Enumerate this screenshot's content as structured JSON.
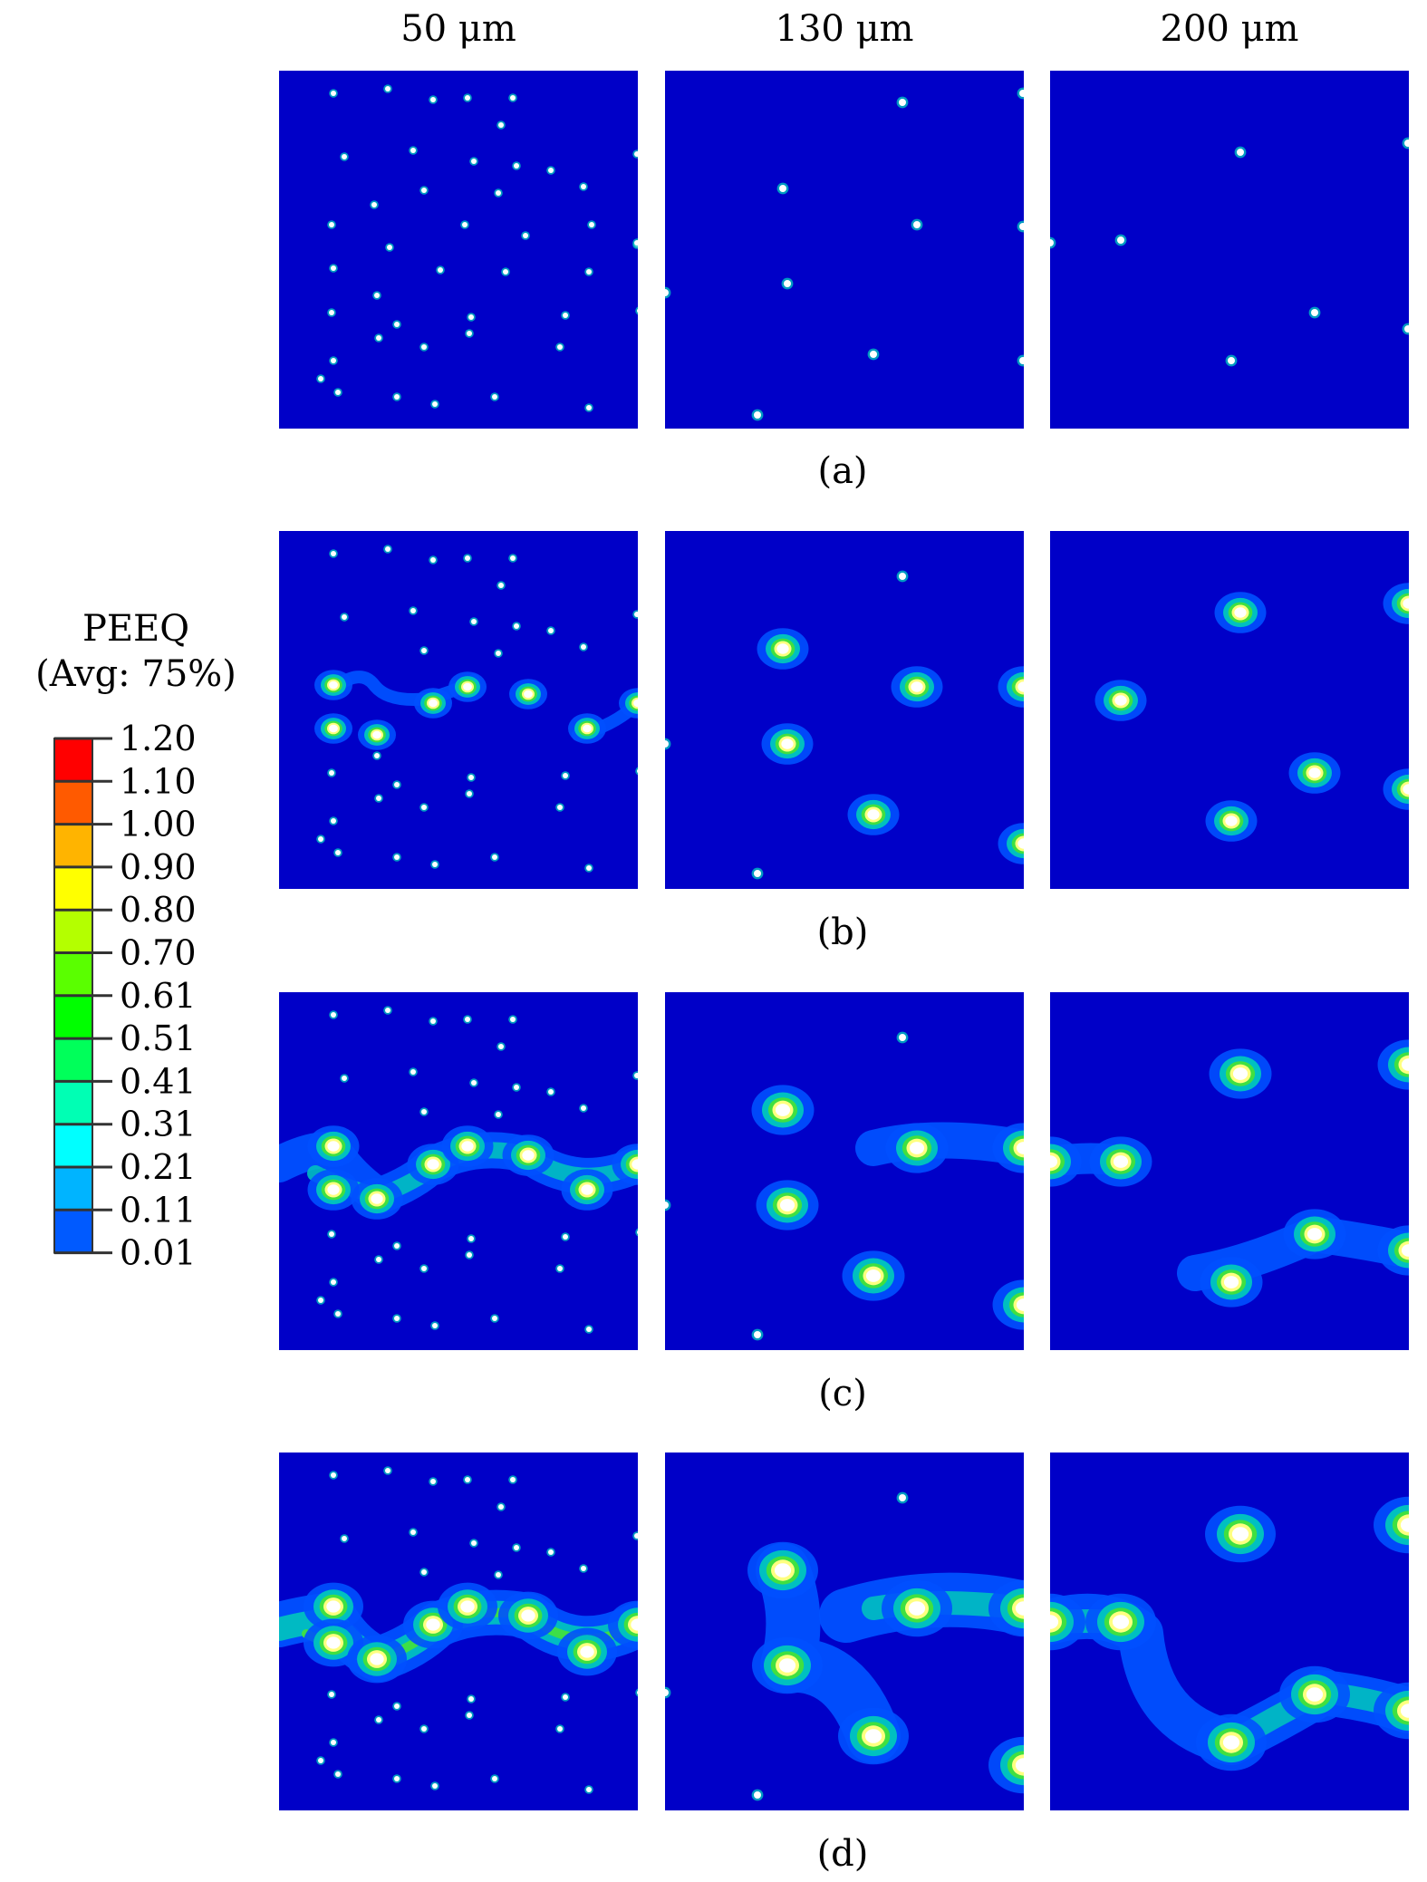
{
  "column_titles": [
    "50 μm",
    "130 μm",
    "200 μm"
  ],
  "row_captions": [
    "(a)",
    "(b)",
    "(c)",
    "(d)"
  ],
  "legend": {
    "title": "PEEQ",
    "subtitle": "(Avg: 75%)",
    "levels": [
      "1.20",
      "1.10",
      "1.00",
      "0.90",
      "0.80",
      "0.70",
      "0.61",
      "0.51",
      "0.41",
      "0.31",
      "0.21",
      "0.11",
      "0.01"
    ],
    "colors": [
      "#ff0000",
      "#ff5a00",
      "#ffb400",
      "#ffff00",
      "#b4ff00",
      "#5aff00",
      "#00ff00",
      "#00ff5a",
      "#00ffb4",
      "#00ffff",
      "#00b4ff",
      "#005aff",
      "#0000ff"
    ]
  },
  "colors": {
    "background": "#0000c8",
    "low_strain": "#0050ff",
    "mid_strain": "#00c0c0",
    "high_strain": "#40e040",
    "peak_strain": "#ffff80"
  }
}
